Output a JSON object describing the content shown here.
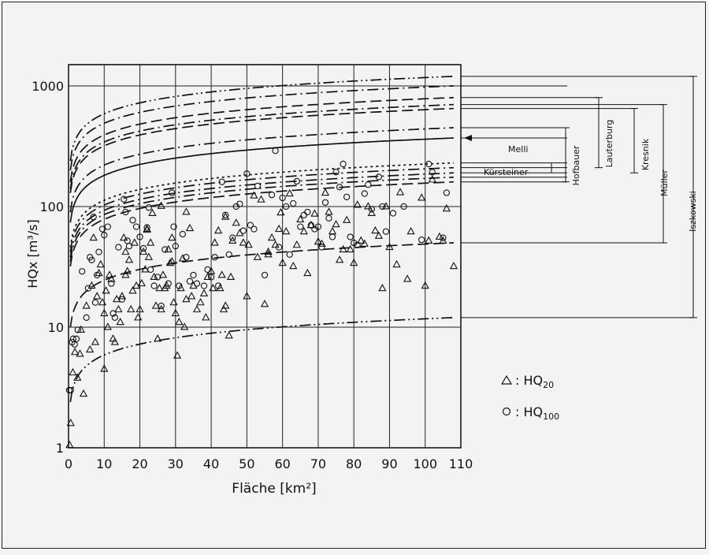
{
  "chart_data": {
    "type": "scatter",
    "xlabel": "Fläche [km²]",
    "ylabel": "HQx [m³/s]",
    "xlim": [
      0,
      110
    ],
    "ylim": [
      1,
      1500
    ],
    "y_scale": "log",
    "grid": true,
    "x_ticks": [
      "0",
      "10",
      "20",
      "30",
      "40",
      "50",
      "60",
      "70",
      "80",
      "90",
      "100",
      "110"
    ],
    "y_ticks": [
      {
        "value": 1,
        "label": "1"
      },
      {
        "value": 10,
        "label": "10"
      },
      {
        "value": 100,
        "label": "100"
      },
      {
        "value": 1000,
        "label": "1000"
      }
    ],
    "legend": {
      "placement": "right",
      "hq20_label": "HQ",
      "hq20_sub": "20",
      "hq100_label": "HQ",
      "hq100_sub": "100",
      "prefix": ": "
    },
    "method_labels": {
      "melli": "Melli",
      "kuersteiner": "Kürsteiner",
      "hofbauer": "Hofbauer",
      "lauterburg": "Lauterburg",
      "kresnik": "Kresnik",
      "mueller": "Müller",
      "iszkowski": "Iszkowski"
    },
    "curves": [
      {
        "end_value": 1200,
        "style": "dashdotdot"
      },
      {
        "end_value": 1000,
        "style": "dashdot"
      },
      {
        "end_value": 800,
        "style": "longdash"
      },
      {
        "end_value": 700,
        "style": "dashdot"
      },
      {
        "end_value": 650,
        "style": "longdash"
      },
      {
        "end_value": 450,
        "style": "dashdot"
      },
      {
        "end_value": 370,
        "style": "solid"
      },
      {
        "end_value": 230,
        "style": "dotted"
      },
      {
        "end_value": 210,
        "style": "dashdot"
      },
      {
        "end_value": 190,
        "style": "dashdot"
      },
      {
        "end_value": 175,
        "style": "dashdot"
      },
      {
        "end_value": 160,
        "style": "longdash"
      },
      {
        "end_value": 50,
        "style": "longdash"
      },
      {
        "end_value": 12,
        "style": "dashdotdot"
      }
    ],
    "series": [
      {
        "name": "HQ20",
        "marker": "triangle",
        "points": [
          [
            0.3,
            1.05
          ],
          [
            0.6,
            1.6
          ],
          [
            1.2,
            4.2
          ],
          [
            1.8,
            6.2
          ],
          [
            2.5,
            3.8
          ],
          [
            3.2,
            6.0
          ],
          [
            3.5,
            9.5
          ],
          [
            4.2,
            2.8
          ],
          [
            5,
            15
          ],
          [
            6,
            6.5
          ],
          [
            6.5,
            22
          ],
          [
            7,
            55
          ],
          [
            7.5,
            7.5
          ],
          [
            8,
            18
          ],
          [
            8.5,
            28
          ],
          [
            9,
            33
          ],
          [
            9.5,
            16
          ],
          [
            10,
            13
          ],
          [
            10,
            4.5
          ],
          [
            10.5,
            20
          ],
          [
            11,
            10
          ],
          [
            11.5,
            27
          ],
          [
            12,
            25
          ],
          [
            12.5,
            8
          ],
          [
            13,
            7.5
          ],
          [
            13.5,
            17
          ],
          [
            14,
            14
          ],
          [
            14.5,
            11
          ],
          [
            15,
            18
          ],
          [
            15.5,
            55
          ],
          [
            16,
            27
          ],
          [
            16.5,
            29
          ],
          [
            17,
            36
          ],
          [
            17.5,
            14
          ],
          [
            18,
            20
          ],
          [
            18.5,
            50
          ],
          [
            19,
            22
          ],
          [
            19.5,
            12
          ],
          [
            20,
            14
          ],
          [
            20.5,
            23
          ],
          [
            21,
            42
          ],
          [
            21.5,
            30
          ],
          [
            22,
            65
          ],
          [
            22.5,
            38
          ],
          [
            23,
            50
          ],
          [
            23.5,
            88
          ],
          [
            24,
            26
          ],
          [
            24.5,
            15
          ],
          [
            25,
            8
          ],
          [
            25.5,
            21
          ],
          [
            26,
            14
          ],
          [
            26.5,
            27
          ],
          [
            27,
            21
          ],
          [
            27.5,
            22
          ],
          [
            28,
            44
          ],
          [
            28.5,
            34
          ],
          [
            29,
            55
          ],
          [
            29.5,
            16
          ],
          [
            30,
            13
          ],
          [
            30.5,
            5.8
          ],
          [
            31,
            11
          ],
          [
            31.5,
            21
          ],
          [
            32,
            37
          ],
          [
            32.5,
            10
          ],
          [
            33,
            17
          ],
          [
            34,
            66
          ],
          [
            34.5,
            18
          ],
          [
            35,
            22
          ],
          [
            36,
            14
          ],
          [
            37,
            16
          ],
          [
            38,
            19
          ],
          [
            38.5,
            12
          ],
          [
            39,
            26
          ],
          [
            40,
            29
          ],
          [
            40.5,
            21
          ],
          [
            41,
            50
          ],
          [
            42,
            63
          ],
          [
            42.5,
            21
          ],
          [
            43,
            27
          ],
          [
            43.5,
            14
          ],
          [
            44,
            15
          ],
          [
            45,
            8.5
          ],
          [
            45.5,
            26
          ],
          [
            46,
            52
          ],
          [
            47,
            73
          ],
          [
            48,
            60
          ],
          [
            49,
            50
          ],
          [
            50,
            18
          ],
          [
            50.5,
            48
          ],
          [
            52,
            123
          ],
          [
            53,
            38
          ],
          [
            54,
            114
          ],
          [
            55,
            15.5
          ],
          [
            56,
            42
          ],
          [
            57,
            55
          ],
          [
            58,
            48
          ],
          [
            59,
            65
          ],
          [
            59.5,
            89
          ],
          [
            60,
            34
          ],
          [
            61,
            62
          ],
          [
            62,
            128
          ],
          [
            63,
            32
          ],
          [
            64,
            48
          ],
          [
            65,
            78
          ],
          [
            66,
            62
          ],
          [
            67,
            28
          ],
          [
            68,
            70
          ],
          [
            69,
            87
          ],
          [
            70,
            51
          ],
          [
            71,
            49
          ],
          [
            72,
            130
          ],
          [
            73,
            90
          ],
          [
            74,
            62
          ],
          [
            75,
            71
          ],
          [
            76,
            36
          ],
          [
            77,
            44
          ],
          [
            78,
            77
          ],
          [
            79,
            44
          ],
          [
            80,
            34
          ],
          [
            81,
            103
          ],
          [
            82,
            52
          ],
          [
            83,
            49
          ],
          [
            84,
            100
          ],
          [
            85,
            88
          ],
          [
            86,
            63
          ],
          [
            87,
            57
          ],
          [
            88,
            21
          ],
          [
            89,
            100
          ],
          [
            90,
            46
          ],
          [
            92,
            33
          ],
          [
            93,
            131
          ],
          [
            95,
            25
          ],
          [
            96,
            62
          ],
          [
            99,
            118
          ],
          [
            100,
            22
          ],
          [
            101,
            52
          ],
          [
            102,
            167
          ],
          [
            104,
            56
          ],
          [
            105,
            52
          ],
          [
            106,
            96
          ],
          [
            108,
            32
          ],
          [
            56,
            40
          ],
          [
            44,
            82
          ],
          [
            33,
            90
          ],
          [
            22,
            64
          ],
          [
            16,
            42
          ],
          [
            26,
            101
          ],
          [
            29,
            35
          ]
        ]
      },
      {
        "name": "HQ100",
        "marker": "circle",
        "points": [
          [
            0.2,
            3
          ],
          [
            0.6,
            3
          ],
          [
            1,
            7.5
          ],
          [
            1.3,
            8
          ],
          [
            1.7,
            7.2
          ],
          [
            2.2,
            8
          ],
          [
            2.6,
            9.5
          ],
          [
            3.8,
            29
          ],
          [
            5,
            12
          ],
          [
            5.5,
            21
          ],
          [
            6,
            38
          ],
          [
            6.5,
            36
          ],
          [
            7,
            82
          ],
          [
            7.5,
            16
          ],
          [
            8,
            27
          ],
          [
            8.5,
            42
          ],
          [
            9.5,
            65
          ],
          [
            10,
            58
          ],
          [
            11,
            68
          ],
          [
            12,
            23
          ],
          [
            12.5,
            13
          ],
          [
            13,
            12
          ],
          [
            14,
            46
          ],
          [
            15,
            17
          ],
          [
            15.5,
            115
          ],
          [
            16,
            90
          ],
          [
            16.5,
            52
          ],
          [
            17,
            47
          ],
          [
            18,
            77
          ],
          [
            19,
            68
          ],
          [
            20,
            56
          ],
          [
            21,
            45
          ],
          [
            22,
            67
          ],
          [
            22.5,
            98
          ],
          [
            23,
            30
          ],
          [
            24,
            22
          ],
          [
            25,
            26
          ],
          [
            26,
            15
          ],
          [
            27,
            44
          ],
          [
            28,
            23
          ],
          [
            29,
            130
          ],
          [
            29.5,
            68
          ],
          [
            30,
            47
          ],
          [
            31,
            22
          ],
          [
            32,
            59
          ],
          [
            33,
            38
          ],
          [
            34,
            24
          ],
          [
            35,
            27
          ],
          [
            36,
            23
          ],
          [
            38,
            22
          ],
          [
            39,
            30
          ],
          [
            40,
            26
          ],
          [
            41,
            38
          ],
          [
            42,
            22
          ],
          [
            43,
            160
          ],
          [
            44,
            85
          ],
          [
            45,
            40
          ],
          [
            46,
            55
          ],
          [
            47,
            100
          ],
          [
            48,
            105
          ],
          [
            49,
            63
          ],
          [
            50,
            187
          ],
          [
            51,
            70
          ],
          [
            52,
            65
          ],
          [
            53,
            148
          ],
          [
            55,
            27
          ],
          [
            57,
            125
          ],
          [
            58,
            290
          ],
          [
            59,
            46
          ],
          [
            60,
            118
          ],
          [
            61,
            100
          ],
          [
            62,
            40
          ],
          [
            63,
            106
          ],
          [
            64,
            162
          ],
          [
            65,
            68
          ],
          [
            66,
            85
          ],
          [
            67,
            90
          ],
          [
            68,
            70
          ],
          [
            69,
            65
          ],
          [
            70,
            68
          ],
          [
            71,
            46
          ],
          [
            72,
            108
          ],
          [
            73,
            80
          ],
          [
            74,
            56
          ],
          [
            75,
            193
          ],
          [
            76,
            145
          ],
          [
            77,
            225
          ],
          [
            78,
            120
          ],
          [
            79,
            56
          ],
          [
            80,
            50
          ],
          [
            81,
            48
          ],
          [
            83,
            128
          ],
          [
            84,
            152
          ],
          [
            85,
            95
          ],
          [
            87,
            176
          ],
          [
            88,
            100
          ],
          [
            89,
            62
          ],
          [
            91,
            88
          ],
          [
            94,
            100
          ],
          [
            99,
            53
          ],
          [
            101,
            225
          ],
          [
            102,
            193
          ],
          [
            105,
            55
          ],
          [
            106,
            130
          ]
        ]
      }
    ]
  }
}
